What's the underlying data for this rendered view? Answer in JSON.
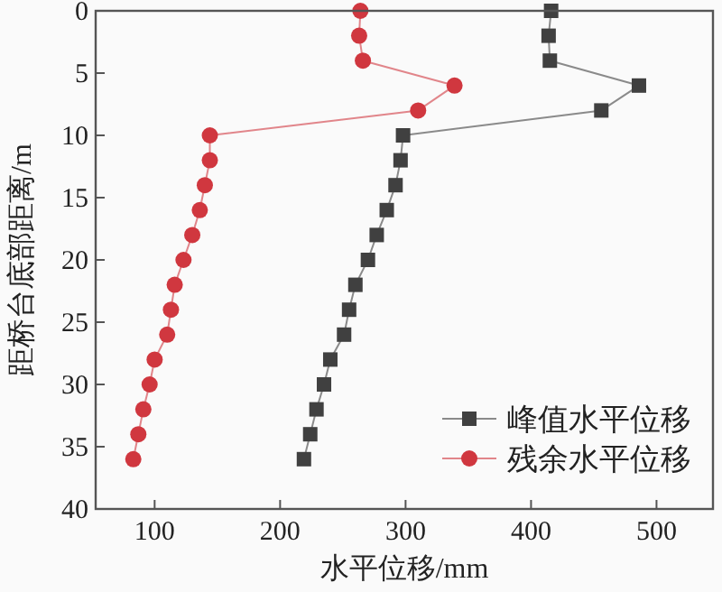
{
  "chart_data": {
    "type": "line",
    "xlabel": "水平位移/mm",
    "ylabel": "距桥台底部距离/m",
    "xlim": [
      53,
      545
    ],
    "xticks": [
      100,
      200,
      300,
      400,
      500
    ],
    "ylim": [
      40,
      0
    ],
    "yticks": [
      0,
      5,
      10,
      15,
      20,
      25,
      30,
      35,
      40
    ],
    "grid": false,
    "legend": "bottom right",
    "line_style": "solid",
    "series": [
      {
        "name": "峰值水平位移",
        "color": "#404040",
        "marker": "square",
        "x": [
          416,
          414,
          415,
          486,
          456,
          298,
          296,
          292,
          285,
          277,
          270,
          260,
          255,
          251,
          240,
          235,
          229,
          224,
          219
        ],
        "values": [
          0,
          2,
          4,
          6,
          8,
          10,
          12,
          14,
          16,
          18,
          20,
          22,
          24,
          26,
          28,
          30,
          32,
          34,
          36
        ]
      },
      {
        "name": "残余水平位移",
        "color": "#d0373f",
        "marker": "circle",
        "x": [
          264,
          263,
          266,
          339,
          310,
          144,
          144,
          140,
          136,
          130,
          123,
          116,
          113,
          110,
          100,
          96,
          91,
          87,
          83
        ],
        "values": [
          0,
          2,
          4,
          6,
          8,
          10,
          12,
          14,
          16,
          18,
          20,
          22,
          24,
          26,
          28,
          30,
          32,
          34,
          36
        ]
      }
    ]
  }
}
